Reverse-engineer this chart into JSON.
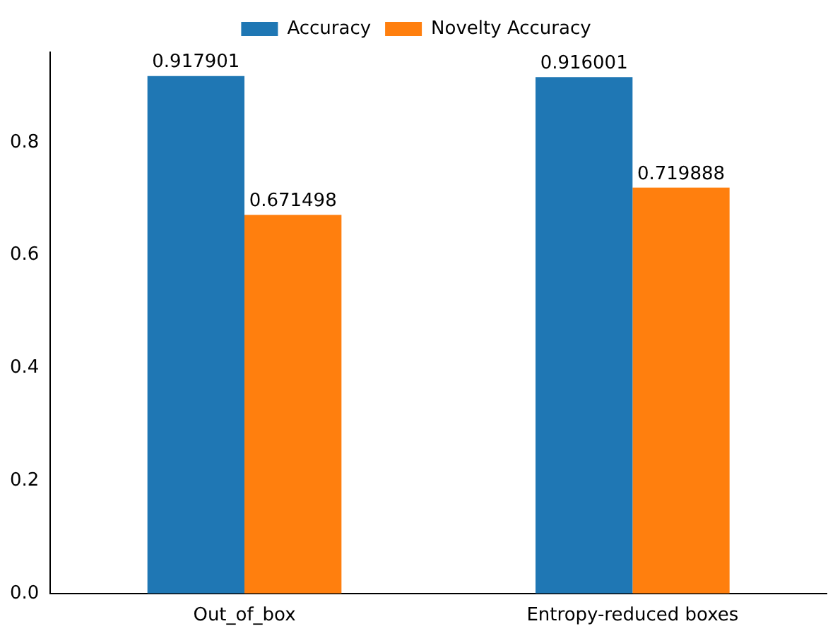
{
  "chart_data": {
    "type": "bar",
    "categories": [
      "Out_of_box",
      "Entropy-reduced boxes"
    ],
    "series": [
      {
        "name": "Accuracy",
        "color": "#1f77b4",
        "values": [
          0.917901,
          0.916001
        ]
      },
      {
        "name": "Novelty Accuracy",
        "color": "#ff7f0e",
        "values": [
          0.671498,
          0.719888
        ]
      }
    ],
    "ylim": [
      0,
      0.96
    ],
    "yticks": [
      {
        "value": 0,
        "label": "0.0"
      },
      {
        "value": 0.2,
        "label": "0.2"
      },
      {
        "value": 0.4,
        "label": "0.4"
      },
      {
        "value": 0.6,
        "label": "0.6"
      },
      {
        "value": 0.8,
        "label": "0.8"
      }
    ],
    "data_labels": true,
    "legend": "top",
    "grid": false
  }
}
